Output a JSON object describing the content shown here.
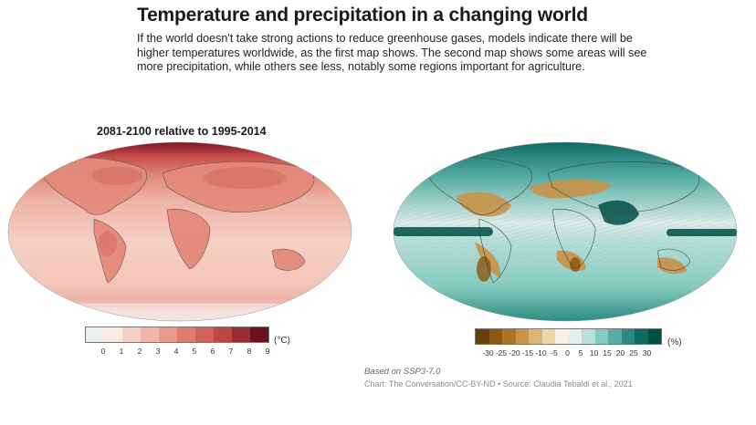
{
  "header": {
    "title": "Temperature and precipitation in a changing world",
    "subtitle": "If the world doesn't take strong actions to reduce greenhouse gases, models indicate there will be higher temperatures worldwide, as the first map shows. The second map shows some areas will see more precipitation, while others see less, notably some regions important for agriculture."
  },
  "maps": {
    "left_title": "2081-2100 relative to 1995-2014",
    "temperature": {
      "unit": "(°C)",
      "ticks": [
        "0",
        "1",
        "2",
        "3",
        "4",
        "5",
        "6",
        "7",
        "8",
        "9"
      ],
      "colors": [
        "#e8f2f3",
        "#fbe9e4",
        "#f5d0c6",
        "#efb5a8",
        "#e89a8b",
        "#df7e70",
        "#d06359",
        "#b94846",
        "#9b2c33",
        "#6e1022"
      ]
    },
    "precipitation": {
      "unit": "(%)",
      "ticks": [
        "-30",
        "-25",
        "-20",
        "-15",
        "-10",
        "-5",
        "0",
        "5",
        "10",
        "15",
        "20",
        "25",
        "30"
      ],
      "colors": [
        "#6b3f0c",
        "#8c5714",
        "#ad7428",
        "#c99348",
        "#dcb477",
        "#eed5aa",
        "#f9f0e3",
        "#e2f1ef",
        "#b6e0d9",
        "#86cbc1",
        "#55ada3",
        "#2b8a80",
        "#0e6a61",
        "#004f46"
      ]
    }
  },
  "source": {
    "basis": "Based on SSP3-7.0",
    "credit": "Chart: The Conversation/CC-BY-ND • Source: Claudia Tebaldi et al., 2021"
  }
}
